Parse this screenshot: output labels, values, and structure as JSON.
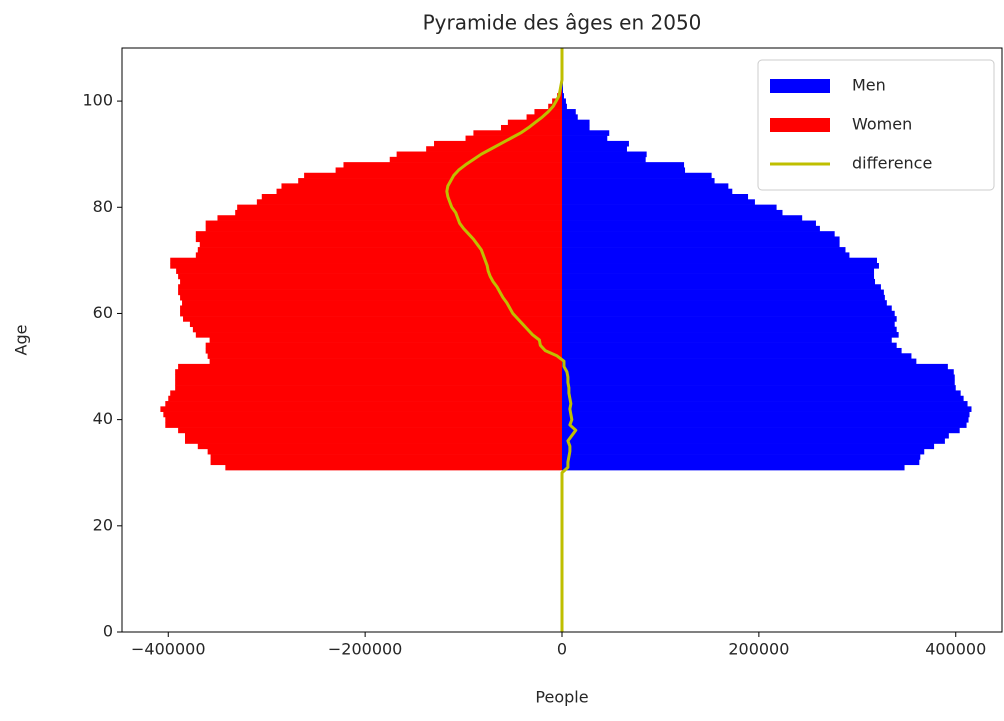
{
  "chart_data": {
    "type": "barh",
    "title": "Pyramide des âges en 2050",
    "xlabel": "People",
    "ylabel": "Age",
    "y": [
      0,
      1,
      2,
      3,
      4,
      5,
      6,
      7,
      8,
      9,
      10,
      11,
      12,
      13,
      14,
      15,
      16,
      17,
      18,
      19,
      20,
      21,
      22,
      23,
      24,
      25,
      26,
      27,
      28,
      29,
      30,
      31,
      32,
      33,
      34,
      35,
      36,
      37,
      38,
      39,
      40,
      41,
      42,
      43,
      44,
      45,
      46,
      47,
      48,
      49,
      50,
      51,
      52,
      53,
      54,
      55,
      56,
      57,
      58,
      59,
      60,
      61,
      62,
      63,
      64,
      65,
      66,
      67,
      68,
      69,
      70,
      71,
      72,
      73,
      74,
      75,
      76,
      77,
      78,
      79,
      80,
      81,
      82,
      83,
      84,
      85,
      86,
      87,
      88,
      89,
      90,
      91,
      92,
      93,
      94,
      95,
      96,
      97,
      98,
      99,
      100,
      101,
      102,
      103,
      104,
      105,
      106,
      107,
      108,
      109,
      110
    ],
    "series": [
      {
        "name": "Men",
        "color": "#0000ff",
        "values": [
          0,
          0,
          0,
          0,
          0,
          0,
          0,
          0,
          0,
          0,
          0,
          0,
          0,
          0,
          0,
          0,
          0,
          0,
          0,
          0,
          0,
          0,
          0,
          0,
          0,
          0,
          0,
          0,
          0,
          0,
          0,
          348000,
          363000,
          364000,
          368000,
          378000,
          389000,
          393000,
          404000,
          411000,
          413000,
          414000,
          416000,
          412000,
          408000,
          405000,
          400000,
          399000,
          399000,
          398000,
          392000,
          360000,
          355000,
          345000,
          340000,
          335000,
          342000,
          340000,
          338000,
          340000,
          338000,
          335000,
          330000,
          328000,
          327000,
          324000,
          318000,
          317000,
          317000,
          322000,
          320000,
          292000,
          288000,
          282000,
          282000,
          277000,
          262000,
          258000,
          244000,
          224000,
          218000,
          196000,
          189000,
          173000,
          169000,
          155000,
          152000,
          125000,
          124000,
          85000,
          86000,
          66000,
          68000,
          46000,
          48000,
          28000,
          28000,
          16000,
          14000,
          5000,
          4000,
          2000,
          1000,
          1000,
          1000,
          0,
          0,
          0,
          0,
          0,
          0
        ]
      },
      {
        "name": "Women",
        "color": "#ff0000",
        "values": [
          0,
          0,
          0,
          0,
          0,
          0,
          0,
          0,
          0,
          0,
          0,
          0,
          0,
          0,
          0,
          0,
          0,
          0,
          0,
          0,
          0,
          0,
          0,
          0,
          0,
          0,
          0,
          0,
          0,
          0,
          0,
          -342000,
          -357000,
          -357000,
          -360000,
          -370000,
          -383000,
          -383000,
          -390000,
          -403000,
          -403000,
          -405000,
          -408000,
          -403000,
          -400000,
          -398000,
          -393000,
          -393000,
          -393000,
          -393000,
          -390000,
          -358000,
          -360000,
          -362000,
          -362000,
          -358000,
          -372000,
          -375000,
          -378000,
          -385000,
          -388000,
          -388000,
          -386000,
          -388000,
          -390000,
          -390000,
          -388000,
          -390000,
          -392000,
          -398000,
          -398000,
          -372000,
          -370000,
          -368000,
          -372000,
          -372000,
          -362000,
          -362000,
          -350000,
          -332000,
          -330000,
          -310000,
          -305000,
          -290000,
          -285000,
          -268000,
          -262000,
          -230000,
          -222000,
          -175000,
          -168000,
          -138000,
          -130000,
          -98000,
          -90000,
          -62000,
          -55000,
          -36000,
          -28000,
          -14000,
          -10000,
          -5000,
          -3000,
          -2000,
          -1000,
          0,
          0,
          0,
          0,
          0,
          0
        ]
      },
      {
        "name": "difference",
        "color": "#bfbf00",
        "values": [
          0,
          0,
          0,
          0,
          0,
          0,
          0,
          0,
          0,
          0,
          0,
          0,
          0,
          0,
          0,
          0,
          0,
          0,
          0,
          0,
          0,
          0,
          0,
          0,
          0,
          0,
          0,
          0,
          0,
          0,
          0,
          6000,
          6000,
          7000,
          8000,
          8000,
          6000,
          10000,
          14000,
          8000,
          10000,
          9000,
          8000,
          9000,
          8000,
          7000,
          7000,
          6000,
          6000,
          5000,
          2000,
          2000,
          -5000,
          -17000,
          -22000,
          -23000,
          -30000,
          -35000,
          -40000,
          -45000,
          -50000,
          -53000,
          -56000,
          -60000,
          -63000,
          -66000,
          -70000,
          -73000,
          -75000,
          -76000,
          -78000,
          -80000,
          -82000,
          -86000,
          -90000,
          -95000,
          -100000,
          -104000,
          -106000,
          -108000,
          -112000,
          -114000,
          -116000,
          -117000,
          -116000,
          -113000,
          -110000,
          -105000,
          -98000,
          -90000,
          -82000,
          -72000,
          -62000,
          -52000,
          -42000,
          -34000,
          -27000,
          -20000,
          -14000,
          -9000,
          -6000,
          -3000,
          -2000,
          -1000,
          0,
          0,
          0,
          0,
          0,
          0,
          0
        ]
      }
    ],
    "xlim": [
      -447000,
      447000
    ],
    "ylim": [
      0,
      110
    ],
    "xticks": [
      {
        "value": -400000,
        "label": "−400000"
      },
      {
        "value": -200000,
        "label": "−200000"
      },
      0,
      200000,
      400000
    ],
    "yticks": [
      0,
      20,
      40,
      60,
      80,
      100
    ],
    "legend": "upper right"
  }
}
